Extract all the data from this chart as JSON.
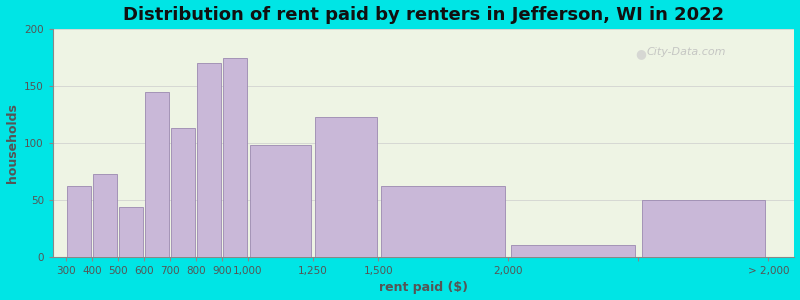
{
  "title": "Distribution of rent paid by renters in Jefferson, WI in 2022",
  "xlabel": "rent paid ($)",
  "ylabel": "households",
  "bar_labels": [
    "300",
    "400",
    "500",
    "600",
    "700",
    "800",
    "900",
    "1,000",
    "1,250",
    "1,500",
    "2,000",
    "> 2,000"
  ],
  "bar_left_edges": [
    300,
    400,
    500,
    600,
    700,
    800,
    900,
    1000,
    1250,
    1500,
    2000,
    2500
  ],
  "bar_right_edges": [
    400,
    500,
    600,
    700,
    800,
    900,
    1000,
    1250,
    1500,
    2000,
    2500,
    3000
  ],
  "bar_values": [
    62,
    73,
    44,
    145,
    113,
    170,
    175,
    98,
    123,
    62,
    10,
    50
  ],
  "bar_color": "#c9b8d8",
  "bar_edgecolor": "#9b89b0",
  "ylim": [
    0,
    200
  ],
  "yticks": [
    0,
    50,
    100,
    150,
    200
  ],
  "xtick_positions": [
    300,
    400,
    500,
    600,
    700,
    800,
    900,
    1000,
    1250,
    1500,
    2000,
    2500,
    3000
  ],
  "xtick_labels": [
    "300",
    "400",
    "500",
    "600",
    "700",
    "800",
    "900",
    "1,000",
    "1,250",
    "1,500",
    "2,000",
    "",
    "> 2,000"
  ],
  "xlim": [
    250,
    3100
  ],
  "bg_outer": "#00e5e5",
  "bg_inner": "#eef4e4",
  "title_fontsize": 13,
  "axis_label_fontsize": 9,
  "tick_fontsize": 7.5,
  "watermark": "City-Data.com"
}
